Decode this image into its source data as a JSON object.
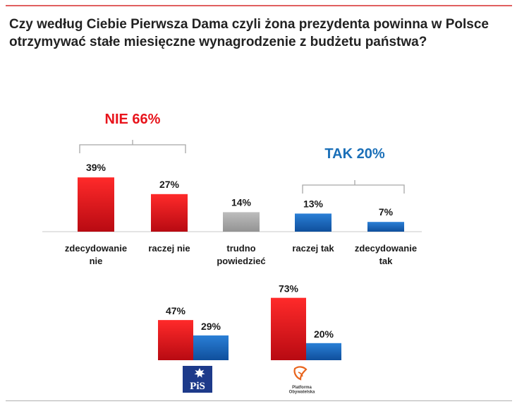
{
  "title": {
    "line1": "Czy według Ciebie Pierwsza Dama czyli żona prezydenta powinna w Polsce",
    "line2": "otrzymywać stałe miesięczne wynagrodzenie z budżetu państwa?"
  },
  "colors": {
    "red": "#e8141c",
    "gray": "#a6a6a6",
    "blue": "#1667c0",
    "accent_red": "#e8141c",
    "accent_blue": "#1a6fb8"
  },
  "chart_data": [
    {
      "type": "bar",
      "title": "Czy według Ciebie Pierwsza Dama czyli żona prezydenta powinna w Polsce otrzymywać stałe miesięczne wynagrodzenie z budżetu państwa?",
      "categories": [
        {
          "label_lines": [
            "zdecydowanie",
            "nie"
          ],
          "value": 39,
          "label": "39%",
          "color": "red"
        },
        {
          "label_lines": [
            "raczej nie"
          ],
          "value": 27,
          "label": "27%",
          "color": "red"
        },
        {
          "label_lines": [
            "trudno",
            "powiedzieć"
          ],
          "value": 14,
          "label": "14%",
          "color": "gray"
        },
        {
          "label_lines": [
            "raczej tak"
          ],
          "value": 13,
          "label": "13%",
          "color": "blue"
        },
        {
          "label_lines": [
            "zdecydowanie",
            "tak"
          ],
          "value": 7,
          "label": "7%",
          "color": "blue"
        }
      ],
      "groups": [
        {
          "label": "NIE 66%",
          "color": "red",
          "spans": [
            0,
            1
          ]
        },
        {
          "label": "TAK 20%",
          "color": "blue",
          "spans": [
            3,
            4
          ]
        }
      ],
      "ylim": [
        0,
        100
      ]
    },
    {
      "type": "bar",
      "series": [
        {
          "name": "nie",
          "color": "red"
        },
        {
          "name": "tak",
          "color": "blue"
        }
      ],
      "parties": [
        {
          "name": "PiS",
          "logo_text": "PiS",
          "values": [
            47,
            29
          ],
          "labels": [
            "47%",
            "29%"
          ]
        },
        {
          "name": "Platforma Obywatelska",
          "logo_lines": [
            "Platforma",
            "Obywatelska"
          ],
          "values": [
            73,
            20
          ],
          "labels": [
            "73%",
            "20%"
          ]
        }
      ],
      "ylim": [
        0,
        100
      ]
    }
  ]
}
